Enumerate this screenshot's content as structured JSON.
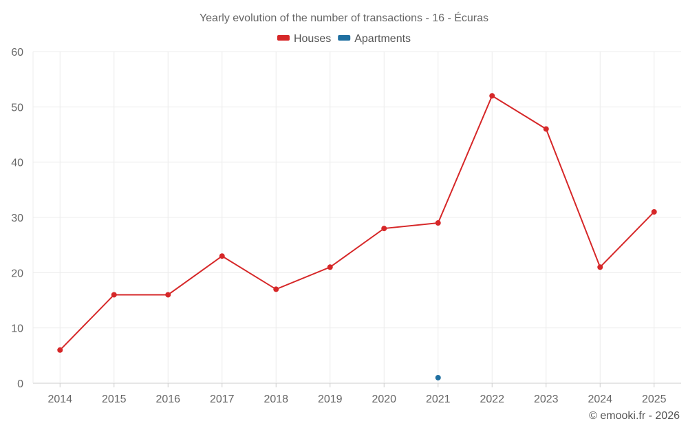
{
  "chart_data": {
    "type": "line",
    "title": "Yearly evolution of the number of transactions - 16 - Écuras",
    "categories": [
      "2014",
      "2015",
      "2016",
      "2017",
      "2018",
      "2019",
      "2020",
      "2021",
      "2022",
      "2023",
      "2024",
      "2025"
    ],
    "series": [
      {
        "name": "Houses",
        "color": "#d62728",
        "values": [
          6,
          16,
          16,
          23,
          17,
          21,
          28,
          29,
          52,
          46,
          21,
          31
        ]
      },
      {
        "name": "Apartments",
        "color": "#1f6fa0",
        "values": [
          null,
          null,
          null,
          null,
          null,
          null,
          null,
          1,
          null,
          null,
          null,
          null
        ]
      }
    ],
    "ylim": [
      0,
      60
    ],
    "yticks": [
      0,
      10,
      20,
      30,
      40,
      50,
      60
    ],
    "xlabel": "",
    "ylabel": "",
    "grid": true,
    "legend": "top-center"
  },
  "credit": "© emooki.fr - 2026"
}
